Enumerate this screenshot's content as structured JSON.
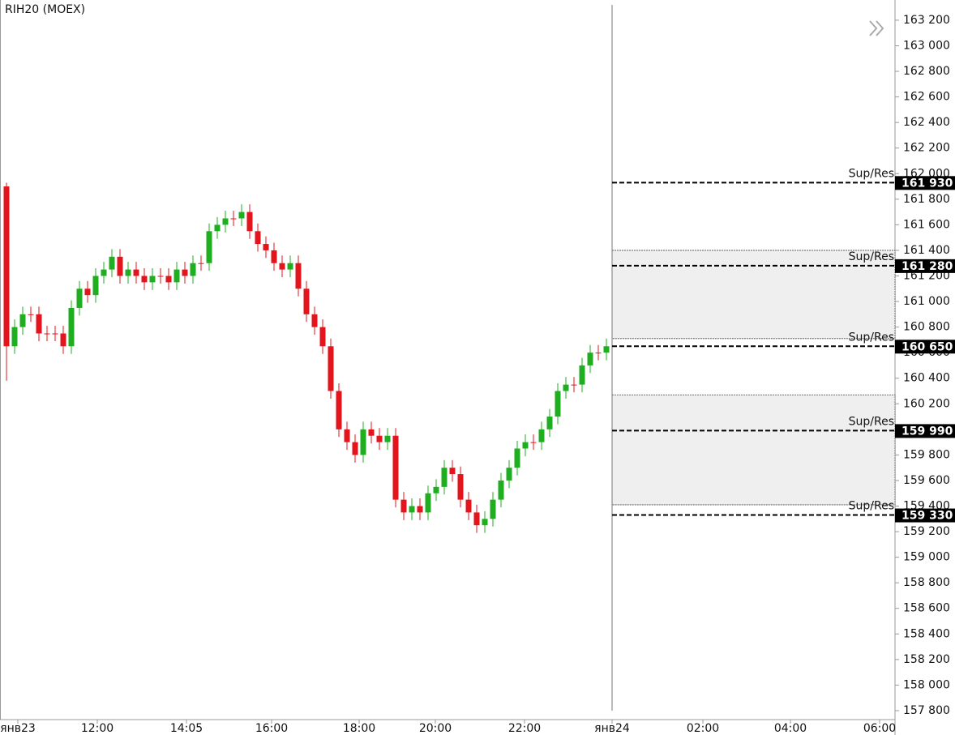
{
  "chart_data": {
    "type": "candlestick",
    "title": "RIH20 (MOEX)",
    "up_color": "#1fae1f",
    "down_color": "#e3141c",
    "open": [
      161900,
      160650,
      160800,
      160900,
      160900,
      160750,
      160750,
      160750,
      160650,
      160950,
      161100,
      161050,
      161200,
      161250,
      161350,
      161200,
      161250,
      161200,
      161150,
      161200,
      161200,
      161150,
      161250,
      161200,
      161300,
      161300,
      161550,
      161600,
      161650,
      161650,
      161700,
      161550,
      161450,
      161400,
      161300,
      161250,
      161300,
      161100,
      160900,
      160800,
      160650,
      160300,
      160000,
      159900,
      159800,
      160000,
      159950,
      159900,
      159950,
      159450,
      159350,
      159400,
      159350,
      159500,
      159550,
      159700,
      159650,
      159450,
      159350,
      159250,
      159300,
      159450,
      159600,
      159700,
      159850,
      159900,
      159900,
      160000,
      160100,
      160300,
      160350,
      160350,
      160500,
      160600,
      160600
    ],
    "high": [
      161930,
      160860,
      160960,
      160960,
      160960,
      160810,
      160810,
      160810,
      161010,
      161160,
      161160,
      161260,
      161310,
      161410,
      161410,
      161310,
      161310,
      161260,
      161260,
      161260,
      161260,
      161310,
      161310,
      161360,
      161360,
      161610,
      161660,
      161710,
      161710,
      161760,
      161760,
      161610,
      161510,
      161460,
      161360,
      161360,
      161360,
      161160,
      160960,
      160860,
      160710,
      160360,
      160060,
      159960,
      160060,
      160060,
      160010,
      160010,
      160010,
      159510,
      159460,
      159460,
      159560,
      159610,
      159760,
      159760,
      159710,
      159510,
      159410,
      159360,
      159510,
      159660,
      159760,
      159910,
      159960,
      159960,
      160060,
      160160,
      160360,
      160410,
      160410,
      160560,
      160660,
      160660,
      160710
    ],
    "low": [
      160380,
      160590,
      160740,
      160840,
      160690,
      160690,
      160690,
      160590,
      160590,
      160890,
      160990,
      160990,
      161140,
      161190,
      161140,
      161140,
      161140,
      161090,
      161090,
      161140,
      161090,
      161090,
      161140,
      161140,
      161240,
      161240,
      161490,
      161540,
      161590,
      161590,
      161490,
      161390,
      161340,
      161240,
      161190,
      161190,
      161040,
      160840,
      160740,
      160590,
      160240,
      159940,
      159840,
      159740,
      159740,
      159890,
      159840,
      159840,
      159390,
      159290,
      159290,
      159290,
      159290,
      159440,
      159490,
      159590,
      159390,
      159290,
      159190,
      159190,
      159240,
      159390,
      159540,
      159640,
      159790,
      159840,
      159840,
      159940,
      160040,
      160240,
      160290,
      160290,
      160440,
      160540,
      160540
    ],
    "close": [
      160650,
      160800,
      160900,
      160900,
      160750,
      160750,
      160750,
      160650,
      160950,
      161100,
      161050,
      161200,
      161250,
      161350,
      161200,
      161250,
      161200,
      161150,
      161200,
      161200,
      161150,
      161250,
      161200,
      161300,
      161300,
      161550,
      161600,
      161650,
      161650,
      161700,
      161550,
      161450,
      161400,
      161300,
      161250,
      161300,
      161100,
      160900,
      160800,
      160650,
      160300,
      160000,
      159900,
      159800,
      160000,
      159950,
      159900,
      159950,
      159450,
      159350,
      159400,
      159350,
      159500,
      159550,
      159700,
      159650,
      159450,
      159350,
      159250,
      159300,
      159450,
      159600,
      159700,
      159850,
      159900,
      159900,
      160000,
      160100,
      160300,
      160350,
      160350,
      160500,
      160600,
      160600,
      160650
    ],
    "xlim": [
      -0.8,
      109.6
    ],
    "xticks": [
      {
        "value": 1.4,
        "label": "янв23"
      },
      {
        "value": 11.2,
        "label": "12:00"
      },
      {
        "value": 22.2,
        "label": "14:05"
      },
      {
        "value": 32.7,
        "label": "16:00"
      },
      {
        "value": 43.5,
        "label": "18:00"
      },
      {
        "value": 52.9,
        "label": "20:00"
      },
      {
        "value": 63.9,
        "label": "22:00"
      },
      {
        "value": 74.7,
        "label": "янв24"
      },
      {
        "value": 85.9,
        "label": "02:00"
      },
      {
        "value": 96.7,
        "label": "04:00"
      },
      {
        "value": 107.7,
        "label": "06:00"
      }
    ],
    "ylim": [
      157730,
      163358
    ],
    "yticks": [
      {
        "value": 157800,
        "label": "157 800"
      },
      {
        "value": 158000,
        "label": "158 000"
      },
      {
        "value": 158200,
        "label": "158 200"
      },
      {
        "value": 158400,
        "label": "158 400"
      },
      {
        "value": 158600,
        "label": "158 600"
      },
      {
        "value": 158800,
        "label": "158 800"
      },
      {
        "value": 159000,
        "label": "159 000"
      },
      {
        "value": 159200,
        "label": "159 200"
      },
      {
        "value": 159400,
        "label": "159 400"
      },
      {
        "value": 159600,
        "label": "159 600"
      },
      {
        "value": 159800,
        "label": "159 800"
      },
      {
        "value": 160000,
        "label": "160 000"
      },
      {
        "value": 160200,
        "label": "160 200"
      },
      {
        "value": 160400,
        "label": "160 400"
      },
      {
        "value": 160600,
        "label": "160 600"
      },
      {
        "value": 160800,
        "label": "160 800"
      },
      {
        "value": 161000,
        "label": "161 000"
      },
      {
        "value": 161200,
        "label": "161 200"
      },
      {
        "value": 161400,
        "label": "161 400"
      },
      {
        "value": 161600,
        "label": "161 600"
      },
      {
        "value": 161800,
        "label": "161 800"
      },
      {
        "value": 162000,
        "label": "162 000"
      },
      {
        "value": 162200,
        "label": "162 200"
      },
      {
        "value": 162400,
        "label": "162 400"
      },
      {
        "value": 162600,
        "label": "162 600"
      },
      {
        "value": 162800,
        "label": "162 800"
      },
      {
        "value": 163000,
        "label": "163 000"
      },
      {
        "value": 163200,
        "label": "163 200"
      }
    ],
    "zones": [
      {
        "top": 161400,
        "bottom": 160710
      },
      {
        "top": 160270,
        "bottom": 159410
      }
    ],
    "levels": [
      {
        "name": "Sup/Res",
        "value": 161930,
        "label": "161 930"
      },
      {
        "name": "Sup/Res",
        "value": 161280,
        "label": "161 280"
      },
      {
        "name": "Sup/Res",
        "value": 160650,
        "label": "160 650"
      },
      {
        "name": "Sup/Res",
        "value": 159990,
        "label": "159 990"
      },
      {
        "name": "Sup/Res",
        "value": 159330,
        "label": "159 330"
      }
    ]
  }
}
